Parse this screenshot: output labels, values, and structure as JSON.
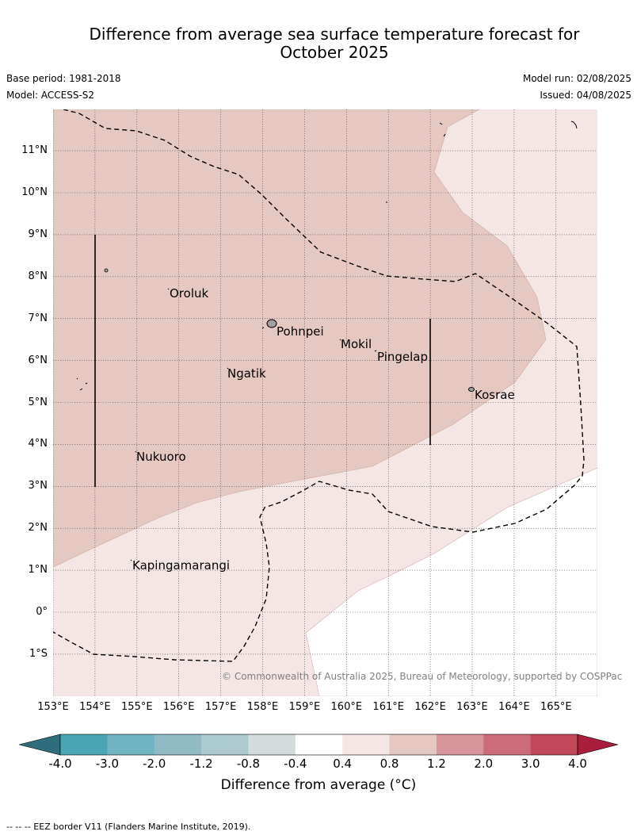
{
  "header": {
    "title_line1": "Difference from average sea surface temperature forecast for",
    "title_line2": "October 2025",
    "base_period": "Base period: 1981-2018",
    "model": "Model: ACCESS-S2",
    "model_run": "Model run: 02/08/2025",
    "issued": "Issued: 04/08/2025"
  },
  "map": {
    "lat_labels": [
      "11°N",
      "10°N",
      "9°N",
      "8°N",
      "7°N",
      "6°N",
      "5°N",
      "4°N",
      "3°N",
      "2°N",
      "1°N",
      "0°",
      "1°S"
    ],
    "lon_labels": [
      "153°E",
      "154°E",
      "155°E",
      "156°E",
      "157°E",
      "158°E",
      "159°E",
      "160°E",
      "161°E",
      "162°E",
      "163°E",
      "164°E",
      "165°E"
    ],
    "places": [
      "Oroluk",
      "Pohnpei",
      "Mokil",
      "Pingelap",
      "Ngatik",
      "Kosrae",
      "Nukuoro",
      "Kapingamarangi"
    ],
    "copyright": "© Commonwealth of Australia 2025, Bureau of Meteorology, supported by COSPPac",
    "colors": {
      "anomaly_0_4_to_0_8": "#f4e6e5",
      "anomaly_0_8_to_1_2": "#e6c8c3",
      "land": "#a0a0a0"
    }
  },
  "colorbar": {
    "ticks": [
      "-4.0",
      "-3.0",
      "-2.0",
      "-1.2",
      "-0.8",
      "-0.4",
      "0.4",
      "0.8",
      "1.2",
      "2.0",
      "3.0",
      "4.0"
    ],
    "colors": [
      "#306d7c",
      "#4aa6b5",
      "#71b4c3",
      "#8fbac6",
      "#adcacf",
      "#d3dbdc",
      "#ffffff",
      "#f4e6e5",
      "#e6c8c3",
      "#d7959c",
      "#cd6b78",
      "#c04858",
      "#a91e3c"
    ],
    "label": "Difference from average (°C)"
  },
  "footnote": "--  --  -- EEZ border V11 (Flanders Marine Institute, 2019)."
}
